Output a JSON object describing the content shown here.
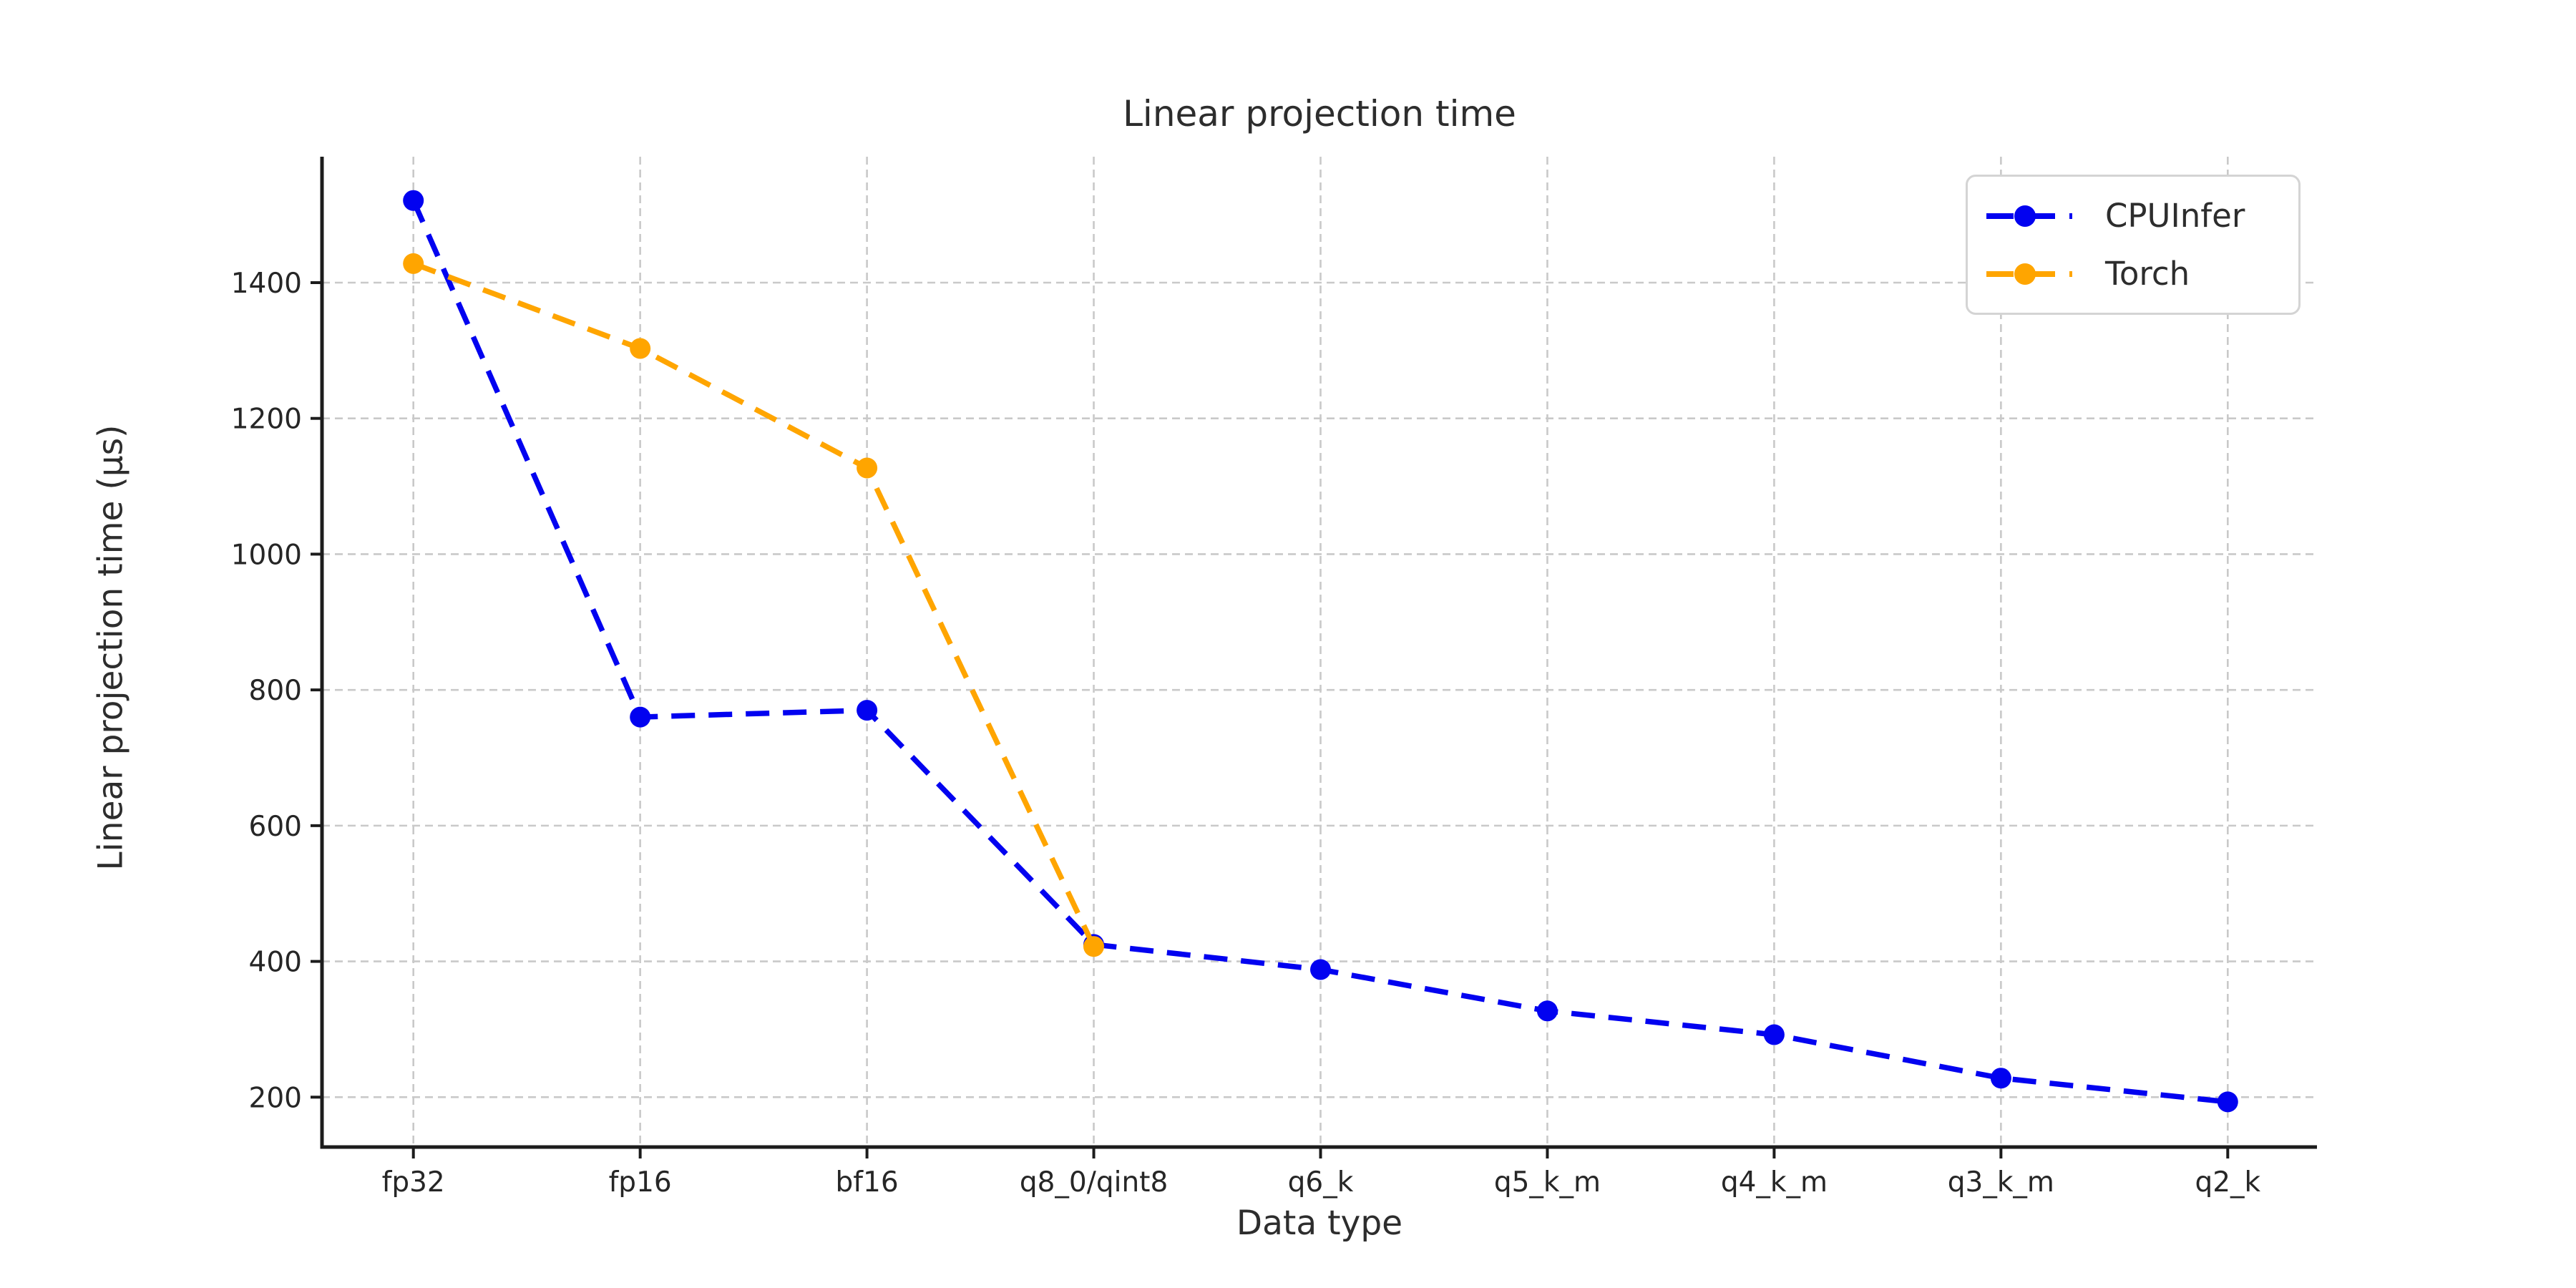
{
  "chart_data": {
    "type": "line",
    "title": "Linear projection time",
    "xlabel": "Data type",
    "ylabel": "Linear projection time (µs)",
    "categories": [
      "fp32",
      "fp16",
      "bf16",
      "q8_0/qint8",
      "q6_k",
      "q5_k_m",
      "q4_k_m",
      "q3_k_m",
      "q2_k"
    ],
    "series": [
      {
        "name": "CPUInfer",
        "color": "#0202f0",
        "values": [
          1521,
          760,
          770,
          425,
          388,
          327,
          292,
          228,
          193
        ]
      },
      {
        "name": "Torch",
        "color": "#ffa500",
        "values": [
          1428,
          1303,
          1127,
          422,
          null,
          null,
          null,
          null,
          null
        ]
      }
    ],
    "yticks": [
      200,
      400,
      600,
      800,
      1000,
      1200,
      1400
    ],
    "ylim": [
      126,
      1586
    ],
    "grid": "dashed gray, horizontal and vertical",
    "legend_position": "upper right",
    "line_style": "dashed with circle markers",
    "colors": {
      "grid": "#c9c9c9",
      "spine": "#1c1c1c",
      "tick_label": "#262626",
      "text": "#2d2d2d",
      "background": "#ffffff"
    }
  }
}
